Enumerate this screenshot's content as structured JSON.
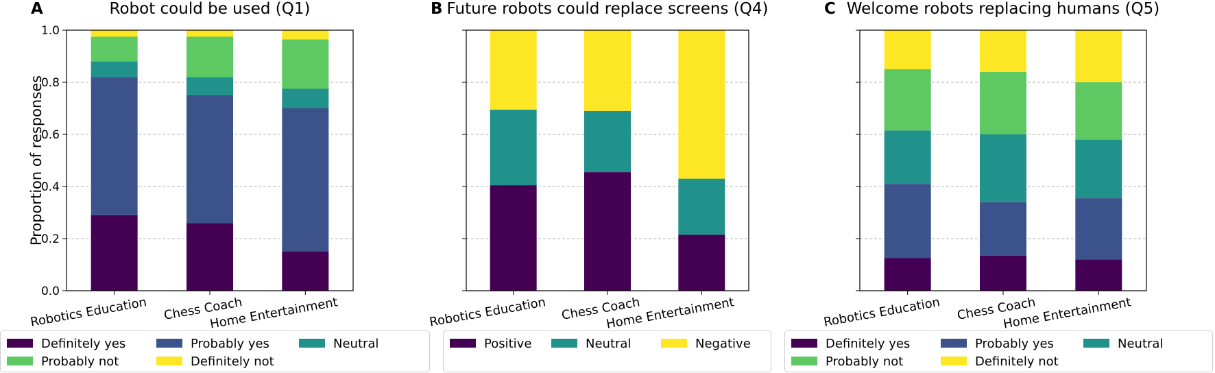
{
  "figure": {
    "ylabel": "Proportion of responses",
    "yticks": [
      "0.0",
      "0.2",
      "0.4",
      "0.6",
      "0.8",
      "1.0"
    ]
  },
  "chart_data": [
    {
      "type": "bar",
      "stacked": true,
      "panel": "A",
      "title": "Robot could be used (Q1)",
      "ylabel": "Proportion of responses",
      "ylim": [
        0,
        1
      ],
      "grid": "horizontal dashed",
      "legend_position": "bottom",
      "categories": [
        "Robotics Education",
        "Chess Coach",
        "Home Entertainment"
      ],
      "series": [
        {
          "name": "Definitely yes",
          "color": "#440154",
          "values": [
            0.29,
            0.26,
            0.15
          ]
        },
        {
          "name": "Probably yes",
          "color": "#3b528b",
          "values": [
            0.53,
            0.49,
            0.55
          ]
        },
        {
          "name": "Neutral",
          "color": "#21918c",
          "values": [
            0.06,
            0.07,
            0.075
          ]
        },
        {
          "name": "Probably not",
          "color": "#5ec962",
          "values": [
            0.095,
            0.155,
            0.19
          ]
        },
        {
          "name": "Definitely not",
          "color": "#fde725",
          "values": [
            0.025,
            0.025,
            0.035
          ]
        }
      ]
    },
    {
      "type": "bar",
      "stacked": true,
      "panel": "B",
      "title": "Future robots could replace screens (Q4)",
      "ylim": [
        0,
        1
      ],
      "grid": "horizontal dashed",
      "legend_position": "bottom",
      "categories": [
        "Robotics Education",
        "Chess Coach",
        "Home Entertainment"
      ],
      "series": [
        {
          "name": "Positive",
          "color": "#440154",
          "values": [
            0.405,
            0.455,
            0.215
          ]
        },
        {
          "name": "Neutral",
          "color": "#21918c",
          "values": [
            0.29,
            0.235,
            0.215
          ]
        },
        {
          "name": "Negative",
          "color": "#fde725",
          "values": [
            0.305,
            0.31,
            0.57
          ]
        }
      ]
    },
    {
      "type": "bar",
      "stacked": true,
      "panel": "C",
      "title": "Welcome robots replacing humans (Q5)",
      "ylim": [
        0,
        1
      ],
      "grid": "horizontal dashed",
      "legend_position": "bottom",
      "categories": [
        "Robotics Education",
        "Chess Coach",
        "Home Entertainment"
      ],
      "series": [
        {
          "name": "Definitely yes",
          "color": "#440154",
          "values": [
            0.125,
            0.135,
            0.12
          ]
        },
        {
          "name": "Probably yes",
          "color": "#3b528b",
          "values": [
            0.285,
            0.205,
            0.235
          ]
        },
        {
          "name": "Neutral",
          "color": "#21918c",
          "values": [
            0.205,
            0.26,
            0.225
          ]
        },
        {
          "name": "Probably not",
          "color": "#5ec962",
          "values": [
            0.235,
            0.24,
            0.22
          ]
        },
        {
          "name": "Definitely not",
          "color": "#fde725",
          "values": [
            0.15,
            0.16,
            0.2
          ]
        }
      ]
    }
  ]
}
